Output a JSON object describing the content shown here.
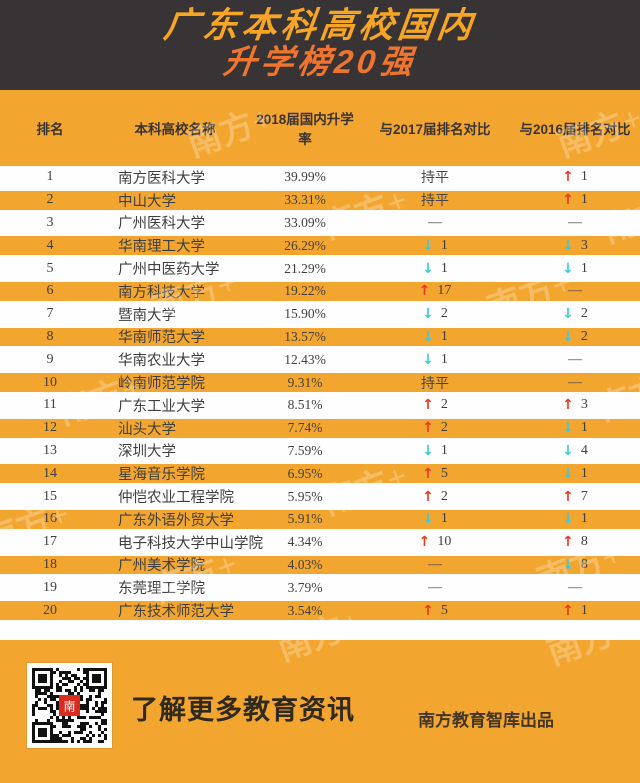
{
  "banner": {
    "title_line1": "广东本科高校国内",
    "title_line2": "升学榜20强"
  },
  "chart_data": {
    "type": "table",
    "title": "广东本科高校国内升学榜20强",
    "columns": [
      "排名",
      "本科高校名称",
      "2018届国内升学率",
      "与2017届排名对比",
      "与2016届排名对比"
    ],
    "flat_label": "持平",
    "none_label": "—",
    "rows": [
      {
        "rank": "1",
        "name": "南方医科大学",
        "rate": "39.99%",
        "vs2017": {
          "dir": "flat"
        },
        "vs2016": {
          "dir": "up",
          "value": "1"
        }
      },
      {
        "rank": "2",
        "name": "中山大学",
        "rate": "33.31%",
        "vs2017": {
          "dir": "flat"
        },
        "vs2016": {
          "dir": "up",
          "value": "1"
        }
      },
      {
        "rank": "3",
        "name": "广州医科大学",
        "rate": "33.09%",
        "vs2017": {
          "dir": "none"
        },
        "vs2016": {
          "dir": "none"
        }
      },
      {
        "rank": "4",
        "name": "华南理工大学",
        "rate": "26.29%",
        "vs2017": {
          "dir": "down",
          "value": "1"
        },
        "vs2016": {
          "dir": "down",
          "value": "3"
        }
      },
      {
        "rank": "5",
        "name": "广州中医药大学",
        "rate": "21.29%",
        "vs2017": {
          "dir": "down",
          "value": "1"
        },
        "vs2016": {
          "dir": "down",
          "value": "1"
        }
      },
      {
        "rank": "6",
        "name": "南方科技大学",
        "rate": "19.22%",
        "vs2017": {
          "dir": "up",
          "value": "17"
        },
        "vs2016": {
          "dir": "none"
        }
      },
      {
        "rank": "7",
        "name": "暨南大学",
        "rate": "15.90%",
        "vs2017": {
          "dir": "down",
          "value": "2"
        },
        "vs2016": {
          "dir": "down",
          "value": "2"
        }
      },
      {
        "rank": "8",
        "name": "华南师范大学",
        "rate": "13.57%",
        "vs2017": {
          "dir": "down",
          "value": "1"
        },
        "vs2016": {
          "dir": "down",
          "value": "2"
        }
      },
      {
        "rank": "9",
        "name": "华南农业大学",
        "rate": "12.43%",
        "vs2017": {
          "dir": "down",
          "value": "1"
        },
        "vs2016": {
          "dir": "none"
        }
      },
      {
        "rank": "10",
        "name": "岭南师范学院",
        "rate": "9.31%",
        "vs2017": {
          "dir": "flat"
        },
        "vs2016": {
          "dir": "none"
        }
      },
      {
        "rank": "11",
        "name": "广东工业大学",
        "rate": "8.51%",
        "vs2017": {
          "dir": "up",
          "value": "2"
        },
        "vs2016": {
          "dir": "up",
          "value": "3"
        }
      },
      {
        "rank": "12",
        "name": "汕头大学",
        "rate": "7.74%",
        "vs2017": {
          "dir": "up",
          "value": "2"
        },
        "vs2016": {
          "dir": "down",
          "value": "1"
        }
      },
      {
        "rank": "13",
        "name": "深圳大学",
        "rate": "7.59%",
        "vs2017": {
          "dir": "down",
          "value": "1"
        },
        "vs2016": {
          "dir": "down",
          "value": "4"
        }
      },
      {
        "rank": "14",
        "name": "星海音乐学院",
        "rate": "6.95%",
        "vs2017": {
          "dir": "up",
          "value": "5"
        },
        "vs2016": {
          "dir": "down",
          "value": "1"
        }
      },
      {
        "rank": "15",
        "name": "仲恺农业工程学院",
        "rate": "5.95%",
        "vs2017": {
          "dir": "up",
          "value": "2"
        },
        "vs2016": {
          "dir": "up",
          "value": "7"
        }
      },
      {
        "rank": "16",
        "name": "广东外语外贸大学",
        "rate": "5.91%",
        "vs2017": {
          "dir": "down",
          "value": "1"
        },
        "vs2016": {
          "dir": "down",
          "value": "1"
        }
      },
      {
        "rank": "17",
        "name": "电子科技大学中山学院",
        "rate": "4.34%",
        "vs2017": {
          "dir": "up",
          "value": "10"
        },
        "vs2016": {
          "dir": "up",
          "value": "8"
        }
      },
      {
        "rank": "18",
        "name": "广州美术学院",
        "rate": "4.03%",
        "vs2017": {
          "dir": "none"
        },
        "vs2016": {
          "dir": "down",
          "value": "8"
        }
      },
      {
        "rank": "19",
        "name": "东莞理工学院",
        "rate": "3.79%",
        "vs2017": {
          "dir": "none"
        },
        "vs2016": {
          "dir": "none"
        }
      },
      {
        "rank": "20",
        "name": "广东技术师范大学",
        "rate": "3.54%",
        "vs2017": {
          "dir": "up",
          "value": "5"
        },
        "vs2016": {
          "dir": "up",
          "value": "1"
        }
      }
    ]
  },
  "glyphs": {
    "up_arrow": "↑",
    "down_arrow": "↓"
  },
  "watermark": {
    "text": "南方+"
  },
  "footer": {
    "cta": "了解更多教育资讯",
    "credit": "南方教育智库出品",
    "qr_center_glyph": "南"
  },
  "colors": {
    "background_orange": "#F3A62F",
    "banner_background": "#383334",
    "title_yellow": "#F7A525",
    "title_orange": "#EF7430",
    "up_red": "#E83A23",
    "down_cyan": "#3EC9DE",
    "row_white": "#FEFEFE",
    "text_dark": "#3F3F3F"
  }
}
